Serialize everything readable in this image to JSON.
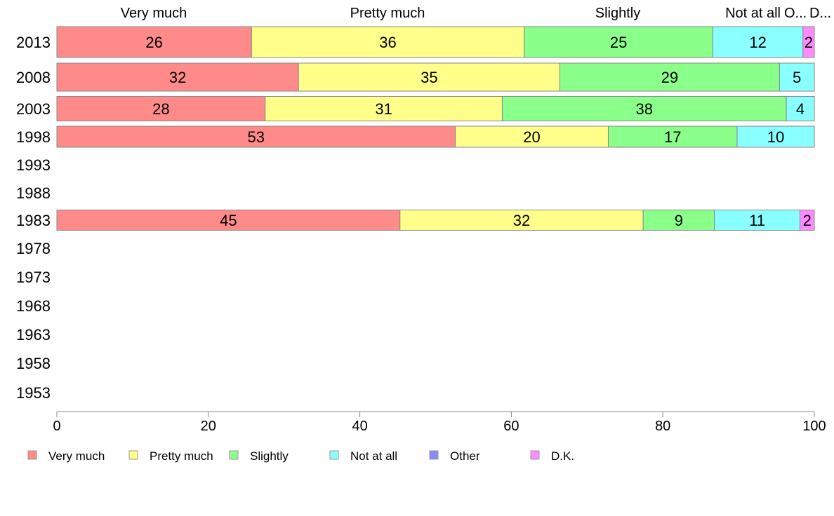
{
  "chart_data": {
    "type": "bar",
    "orientation": "horizontal",
    "stacked": true,
    "categories": [
      "2013",
      "2008",
      "2003",
      "1998",
      "1993",
      "1988",
      "1983",
      "1978",
      "1973",
      "1968",
      "1963",
      "1958",
      "1953"
    ],
    "series": [
      {
        "name": "Very much",
        "color": "#ff8a8a",
        "values": [
          25.7,
          31.9,
          27.5,
          52.6,
          null,
          null,
          45.3,
          null,
          null,
          null,
          null,
          null,
          null
        ],
        "labels": [
          "26",
          "32",
          "28",
          "53",
          null,
          null,
          "45",
          null,
          null,
          null,
          null,
          null,
          null
        ]
      },
      {
        "name": "Pretty much",
        "color": "#ffff8a",
        "values": [
          36.0,
          34.5,
          31.3,
          20.2,
          null,
          null,
          32.1,
          null,
          null,
          null,
          null,
          null,
          null
        ],
        "labels": [
          "36",
          "35",
          "31",
          "20",
          null,
          null,
          "32",
          null,
          null,
          null,
          null,
          null,
          null
        ]
      },
      {
        "name": "Slightly",
        "color": "#8aff8a",
        "values": [
          24.9,
          29.0,
          37.5,
          17.0,
          null,
          null,
          9.4,
          null,
          null,
          null,
          null,
          null,
          null
        ],
        "labels": [
          "25",
          "29",
          "38",
          "17",
          null,
          null,
          "9",
          null,
          null,
          null,
          null,
          null,
          null
        ]
      },
      {
        "name": "Not at all",
        "color": "#8affff",
        "values": [
          11.9,
          4.6,
          3.7,
          10.2,
          null,
          null,
          11.3,
          null,
          null,
          null,
          null,
          null,
          null
        ],
        "labels": [
          "12",
          "5",
          "4",
          "10",
          null,
          null,
          "11",
          null,
          null,
          null,
          null,
          null,
          null
        ]
      },
      {
        "name": "Other",
        "color": "#8a8aff",
        "values": [
          0,
          0,
          0,
          0,
          null,
          null,
          0,
          null,
          null,
          null,
          null,
          null,
          null
        ],
        "labels": [
          null,
          null,
          null,
          null,
          null,
          null,
          null,
          null,
          null,
          null,
          null,
          null,
          null
        ]
      },
      {
        "name": "D.K.",
        "color": "#ff8aff",
        "values": [
          1.5,
          0,
          0,
          0,
          null,
          null,
          1.9,
          null,
          null,
          null,
          null,
          null,
          null
        ],
        "labels": [
          "2",
          null,
          null,
          null,
          null,
          null,
          "2",
          null,
          null,
          null,
          null,
          null,
          null
        ]
      }
    ],
    "top_labels": [
      "Very much",
      "Pretty much",
      "Slightly",
      "Not at all",
      "O...",
      "D..."
    ],
    "xlim": [
      0,
      100
    ],
    "xticks": [
      "0",
      "20",
      "40",
      "60",
      "80",
      "100"
    ],
    "legend_position": "bottom-left",
    "grid": false
  }
}
